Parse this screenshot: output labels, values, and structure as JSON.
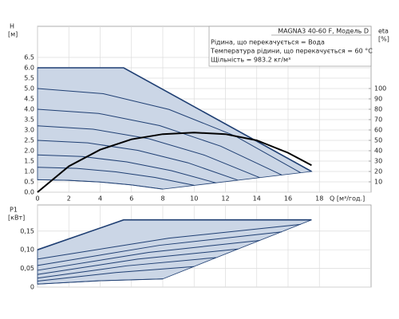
{
  "chart_data": [
    {
      "type": "line",
      "title": "MAGNA3 40-60 F, Модель D",
      "annotations": [
        "Рідина, що перекачується = Вода",
        "Температура рідини, що перекачується = 60 °C",
        "Щільність = 983.2 кг/м³"
      ],
      "y_label": "H",
      "y_unit": "[м]",
      "y2_label": "eta",
      "y2_unit": "[%]",
      "x_label": "Q [м³/год.]",
      "xlim": [
        0,
        21.3
      ],
      "xticks": [
        0,
        2,
        4,
        6,
        8,
        10,
        12,
        14,
        16,
        18
      ],
      "ylim": [
        0,
        8
      ],
      "yticks": [
        {
          "value": 0,
          "label": "0.0"
        },
        0.5,
        {
          "value": 1,
          "label": "1.0"
        },
        1.5,
        {
          "value": 2,
          "label": "2.0"
        },
        2.5,
        {
          "value": 3,
          "label": "3.0"
        },
        3.5,
        {
          "value": 4,
          "label": "4.0"
        },
        4.5,
        {
          "value": 5,
          "label": "5.0"
        },
        5.5,
        {
          "value": 6,
          "label": "6.0"
        },
        6.5
      ],
      "y2lim": [
        0,
        160
      ],
      "y2ticks": [
        10,
        20,
        30,
        40,
        50,
        60,
        70,
        80,
        90,
        100
      ],
      "grid": true,
      "fill_color": "#cbd6e6",
      "series": [
        {
          "color": "#1f3f73",
          "x": [
            0,
            5.5,
            17.5
          ],
          "values": [
            6.0,
            6.0,
            1.0
          ]
        },
        {
          "color": "#1f3f73",
          "x": [
            0,
            4.2,
            8.4,
            12.6,
            16.8
          ],
          "values": [
            5.0,
            4.75,
            3.99,
            2.72,
            0.94
          ]
        },
        {
          "color": "#1f3f73",
          "x": [
            0,
            3.9,
            7.8,
            11.7,
            15.6
          ],
          "values": [
            4.0,
            3.8,
            3.21,
            2.22,
            0.83
          ]
        },
        {
          "color": "#1f3f73",
          "x": [
            0,
            3.55,
            7.1,
            10.65,
            14.2
          ],
          "values": [
            3.2,
            3.04,
            2.58,
            1.79,
            0.7
          ]
        },
        {
          "color": "#1f3f73",
          "x": [
            0,
            3.2,
            6.4,
            9.6,
            12.8
          ],
          "values": [
            2.5,
            2.38,
            2.02,
            1.42,
            0.58
          ]
        },
        {
          "color": "#1f3f73",
          "x": [
            0,
            2.85,
            5.7,
            8.55,
            11.4
          ],
          "values": [
            1.8,
            1.72,
            1.46,
            1.04,
            0.45
          ]
        },
        {
          "color": "#1f3f73",
          "x": [
            0,
            2.5,
            5,
            7.5,
            10
          ],
          "values": [
            1.2,
            1.15,
            0.98,
            0.71,
            0.33
          ]
        },
        {
          "color": "#1f3f73",
          "x": [
            0,
            2,
            4,
            6,
            8
          ],
          "values": [
            0.6,
            0.57,
            0.49,
            0.35,
            0.15
          ]
        },
        {
          "color": "#000000",
          "axis": "y2",
          "x": [
            0,
            2,
            4,
            6,
            8,
            10,
            12,
            14,
            16,
            17.5
          ],
          "values": [
            0,
            25,
            41,
            51,
            56,
            57.5,
            56,
            50,
            38,
            26
          ]
        }
      ]
    },
    {
      "type": "line",
      "y_label": "P1",
      "y_unit": "[кВт]",
      "xlim": [
        0,
        21.3
      ],
      "xticks": [
        0,
        2,
        4,
        6,
        8,
        10,
        12,
        14,
        16,
        18
      ],
      "show_xtick_labels": false,
      "ylim": [
        0,
        0.22
      ],
      "yticks": [
        0,
        {
          "value": 0.05,
          "label": "0,05"
        },
        {
          "value": 0.1,
          "label": "0,10"
        },
        {
          "value": 0.15,
          "label": "0,15"
        }
      ],
      "grid": true,
      "fill_color": "#cbd6e6",
      "series": [
        {
          "color": "#1f3f73",
          "x": [
            0,
            5.5,
            17.5
          ],
          "values": [
            0.1,
            0.18,
            0.18
          ]
        },
        {
          "color": "#1f3f73",
          "x": [
            0,
            8.4,
            16.8
          ],
          "values": [
            0.075,
            0.131,
            0.168
          ]
        },
        {
          "color": "#1f3f73",
          "x": [
            0,
            7.8,
            15.6
          ],
          "values": [
            0.058,
            0.112,
            0.148
          ]
        },
        {
          "color": "#1f3f73",
          "x": [
            0,
            7.1,
            14.2
          ],
          "values": [
            0.045,
            0.093,
            0.125
          ]
        },
        {
          "color": "#1f3f73",
          "x": [
            0,
            6.4,
            12.8
          ],
          "values": [
            0.034,
            0.075,
            0.102
          ]
        },
        {
          "color": "#1f3f73",
          "x": [
            0,
            5.7,
            11.4
          ],
          "values": [
            0.024,
            0.057,
            0.079
          ]
        },
        {
          "color": "#1f3f73",
          "x": [
            0,
            5,
            10
          ],
          "values": [
            0.016,
            0.039,
            0.055
          ]
        },
        {
          "color": "#1f3f73",
          "x": [
            0,
            4,
            8
          ],
          "values": [
            0.008,
            0.017,
            0.022
          ]
        }
      ]
    }
  ]
}
